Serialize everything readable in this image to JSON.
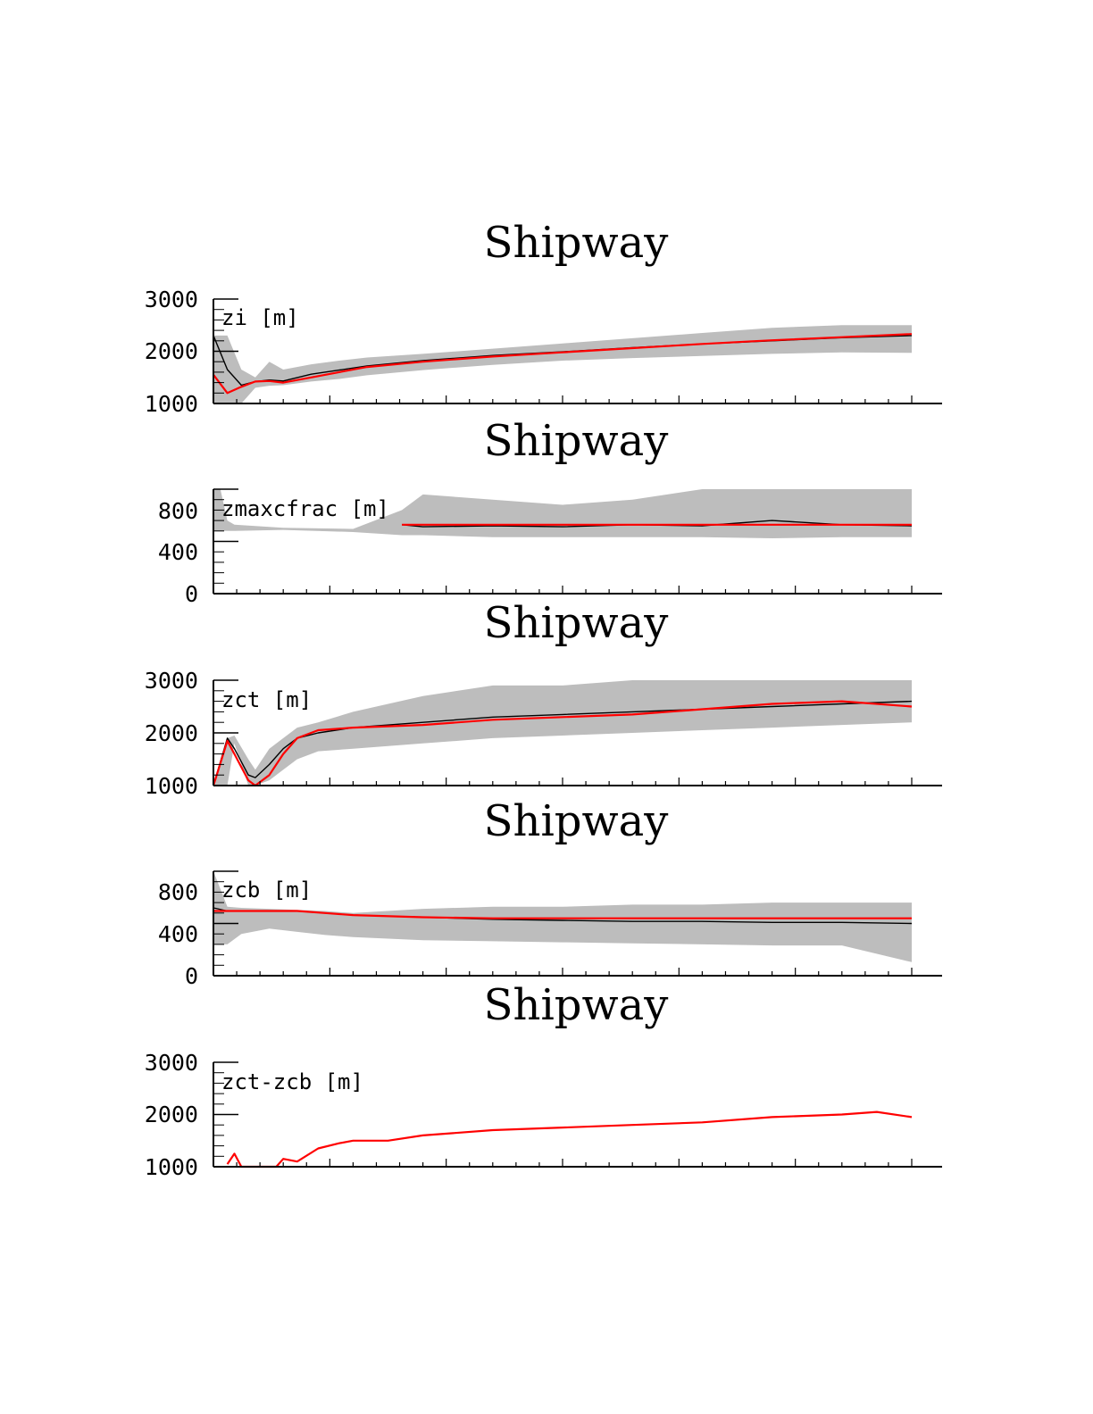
{
  "colors": {
    "envelope": "#bdbdbd",
    "black_series": "#000000",
    "red_series": "#ff0000"
  },
  "chart_data": [
    {
      "type": "area",
      "title": "Shipway",
      "ylabel": "zi [m]",
      "ylim": [
        1000,
        3000
      ],
      "yticks": [
        "3000",
        "2000",
        "1000"
      ],
      "x": [
        0,
        2,
        4,
        6,
        8,
        10,
        14,
        18,
        22,
        30,
        40,
        50,
        60,
        70,
        80,
        90,
        100
      ],
      "envelope_low": [
        1000,
        1000,
        1000,
        1300,
        1340,
        1350,
        1420,
        1470,
        1540,
        1640,
        1740,
        1820,
        1870,
        1910,
        1950,
        1980,
        1970
      ],
      "envelope_high": [
        2300,
        2300,
        1650,
        1500,
        1800,
        1650,
        1750,
        1820,
        1880,
        1950,
        2050,
        2150,
        2250,
        2350,
        2450,
        2500,
        2500
      ],
      "series": [
        {
          "color": "#000000",
          "values": [
            2300,
            1650,
            1350,
            1420,
            1450,
            1430,
            1560,
            1640,
            1720,
            1820,
            1920,
            1990,
            2070,
            2140,
            2200,
            2260,
            2300
          ]
        },
        {
          "color": "#ff0000",
          "values": [
            1550,
            1200,
            1320,
            1420,
            1430,
            1400,
            1500,
            1600,
            1700,
            1800,
            1900,
            1980,
            2060,
            2140,
            2210,
            2270,
            2330
          ]
        }
      ]
    },
    {
      "type": "area",
      "title": "Shipway",
      "ylabel": "zmaxcfrac [m]",
      "ylim": [
        0,
        1000
      ],
      "yticks": [
        "800",
        "400",
        "0"
      ],
      "x": [
        0,
        1,
        2,
        3,
        10,
        20,
        27,
        30,
        40,
        50,
        60,
        70,
        80,
        90,
        100
      ],
      "envelope_low": [
        600,
        600,
        600,
        600,
        610,
        590,
        560,
        560,
        540,
        540,
        540,
        540,
        530,
        540,
        540
      ],
      "envelope_high": [
        1000,
        1000,
        700,
        660,
        630,
        620,
        800,
        950,
        900,
        850,
        900,
        1000,
        1000,
        1000,
        1000
      ],
      "series": [
        {
          "color": "#000000",
          "values": [
            null,
            null,
            null,
            null,
            null,
            null,
            660,
            640,
            650,
            640,
            660,
            650,
            700,
            660,
            650
          ]
        },
        {
          "color": "#ff0000",
          "values": [
            null,
            null,
            null,
            null,
            null,
            null,
            660,
            660,
            660,
            660,
            660,
            660,
            660,
            660,
            660
          ]
        }
      ]
    },
    {
      "type": "area",
      "title": "Shipway",
      "ylabel": "zct [m]",
      "ylim": [
        1000,
        3000
      ],
      "yticks": [
        "3000",
        "2000",
        "1000"
      ],
      "x": [
        0,
        2,
        3,
        5,
        6,
        8,
        10,
        12,
        15,
        20,
        30,
        40,
        50,
        60,
        70,
        80,
        90,
        100
      ],
      "envelope_low": [
        1000,
        1000,
        1800,
        1000,
        1000,
        1100,
        1300,
        1500,
        1650,
        1700,
        1800,
        1900,
        1950,
        2000,
        2050,
        2100,
        2150,
        2200
      ],
      "envelope_high": [
        1000,
        1900,
        1950,
        1500,
        1300,
        1700,
        1900,
        2100,
        2200,
        2400,
        2700,
        2900,
        2900,
        3000,
        3000,
        3000,
        3000,
        3000
      ],
      "series": [
        {
          "color": "#000000",
          "values": [
            1000,
            1900,
            1700,
            1200,
            1150,
            1400,
            1700,
            1900,
            2000,
            2100,
            2200,
            2300,
            2350,
            2400,
            2450,
            2500,
            2550,
            2600
          ]
        },
        {
          "color": "#ff0000",
          "values": [
            1000,
            1850,
            1600,
            1100,
            1000,
            1200,
            1600,
            1900,
            2050,
            2100,
            2150,
            2250,
            2300,
            2350,
            2450,
            2550,
            2600,
            2500
          ]
        }
      ]
    },
    {
      "type": "area",
      "title": "Shipway",
      "ylabel": "zcb [m]",
      "ylim": [
        0,
        1000
      ],
      "yticks": [
        "800",
        "400",
        "0"
      ],
      "x": [
        0,
        2,
        4,
        8,
        12,
        16,
        20,
        30,
        40,
        50,
        60,
        70,
        80,
        90,
        100
      ],
      "envelope_low": [
        300,
        300,
        400,
        450,
        420,
        390,
        370,
        340,
        330,
        320,
        310,
        300,
        290,
        290,
        130
      ],
      "envelope_high": [
        1000,
        660,
        650,
        640,
        630,
        620,
        600,
        640,
        660,
        660,
        680,
        680,
        700,
        700,
        700
      ],
      "series": [
        {
          "color": "#000000",
          "values": [
            650,
            620,
            620,
            620,
            620,
            600,
            580,
            560,
            540,
            530,
            520,
            520,
            510,
            510,
            500
          ]
        },
        {
          "color": "#ff0000",
          "values": [
            620,
            620,
            620,
            620,
            620,
            600,
            580,
            560,
            550,
            550,
            550,
            550,
            550,
            550,
            550
          ]
        }
      ]
    },
    {
      "type": "line",
      "title": "Shipway",
      "ylabel": "zct-zcb [m]",
      "ylim": [
        1000,
        3000
      ],
      "yticks": [
        "3000",
        "2000",
        "1000"
      ],
      "x": [
        2,
        3,
        4,
        9,
        10,
        12,
        15,
        18,
        20,
        25,
        30,
        40,
        50,
        60,
        70,
        80,
        90,
        95,
        100
      ],
      "series": [
        {
          "color": "#ff0000",
          "values": [
            1050,
            1250,
            1000,
            1000,
            1150,
            1100,
            1350,
            1450,
            1500,
            1500,
            1600,
            1700,
            1750,
            1800,
            1850,
            1950,
            2000,
            2050,
            1950
          ]
        }
      ]
    }
  ]
}
